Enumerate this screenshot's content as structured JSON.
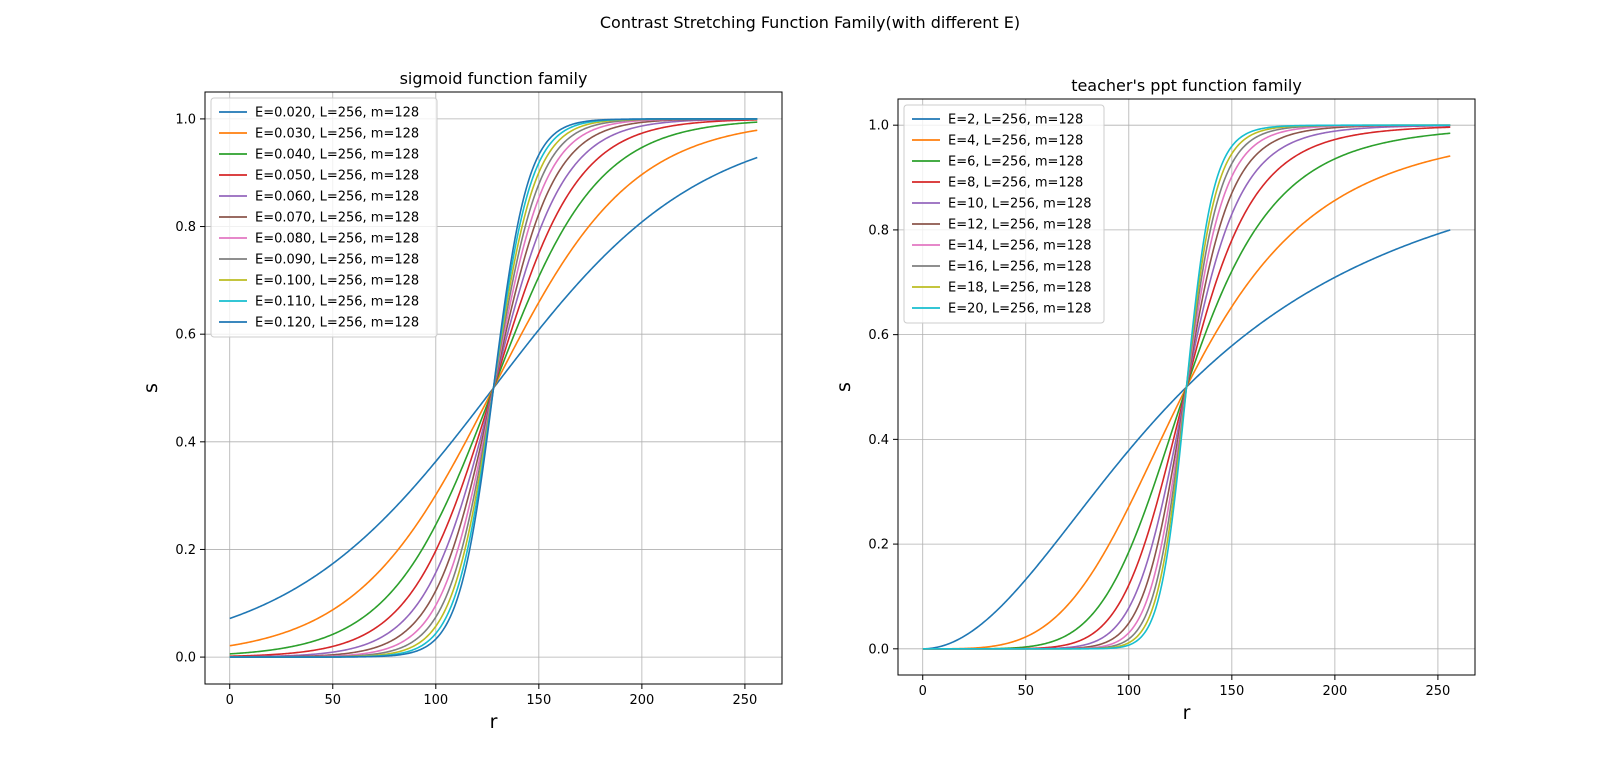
{
  "figure": {
    "suptitle": "Contrast Stretching Function Family(with different E)"
  },
  "colors": [
    "#1f77b4",
    "#ff7f0e",
    "#2ca02c",
    "#d62728",
    "#9467bd",
    "#8c564b",
    "#e377c2",
    "#7f7f7f",
    "#bcbd22",
    "#17becf"
  ],
  "chart_data": [
    {
      "type": "line",
      "function": "sigmoid",
      "title": "sigmoid function family",
      "xlabel": "r",
      "ylabel": "s",
      "L": 256,
      "m": 128,
      "xlim": [
        -12,
        268
      ],
      "ylim": [
        -0.05,
        1.05
      ],
      "xticks": [
        0,
        50,
        100,
        150,
        200,
        250
      ],
      "yticks": [
        0.0,
        0.2,
        0.4,
        0.6,
        0.8,
        1.0
      ],
      "xtick_labels": [
        "0",
        "50",
        "100",
        "150",
        "200",
        "250"
      ],
      "ytick_labels": [
        "0.0",
        "0.2",
        "0.4",
        "0.6",
        "0.8",
        "1.0"
      ],
      "grid": true,
      "legend_position": "upper-left",
      "series": [
        {
          "name": "E=0.020, L=256, m=128",
          "E": 0.02
        },
        {
          "name": "E=0.030, L=256, m=128",
          "E": 0.03
        },
        {
          "name": "E=0.040, L=256, m=128",
          "E": 0.04
        },
        {
          "name": "E=0.050, L=256, m=128",
          "E": 0.05
        },
        {
          "name": "E=0.060, L=256, m=128",
          "E": 0.06
        },
        {
          "name": "E=0.070, L=256, m=128",
          "E": 0.07
        },
        {
          "name": "E=0.080, L=256, m=128",
          "E": 0.08
        },
        {
          "name": "E=0.090, L=256, m=128",
          "E": 0.09
        },
        {
          "name": "E=0.100, L=256, m=128",
          "E": 0.1
        },
        {
          "name": "E=0.110, L=256, m=128",
          "E": 0.11
        },
        {
          "name": "E=0.120, L=256, m=128",
          "E": 0.12
        }
      ]
    },
    {
      "type": "line",
      "function": "power",
      "title": "teacher's ppt function family",
      "xlabel": "r",
      "ylabel": "s",
      "L": 256,
      "m": 128,
      "xlim": [
        -12,
        268
      ],
      "ylim": [
        -0.05,
        1.05
      ],
      "xticks": [
        0,
        50,
        100,
        150,
        200,
        250
      ],
      "yticks": [
        0.0,
        0.2,
        0.4,
        0.6,
        0.8,
        1.0
      ],
      "xtick_labels": [
        "0",
        "50",
        "100",
        "150",
        "200",
        "250"
      ],
      "ytick_labels": [
        "0.0",
        "0.2",
        "0.4",
        "0.6",
        "0.8",
        "1.0"
      ],
      "grid": true,
      "legend_position": "upper-left",
      "series": [
        {
          "name": "E=2, L=256, m=128",
          "E": 2
        },
        {
          "name": "E=4, L=256, m=128",
          "E": 4
        },
        {
          "name": "E=6, L=256, m=128",
          "E": 6
        },
        {
          "name": "E=8, L=256, m=128",
          "E": 8
        },
        {
          "name": "E=10, L=256, m=128",
          "E": 10
        },
        {
          "name": "E=12, L=256, m=128",
          "E": 12
        },
        {
          "name": "E=14, L=256, m=128",
          "E": 14
        },
        {
          "name": "E=16, L=256, m=128",
          "E": 16
        },
        {
          "name": "E=18, L=256, m=128",
          "E": 18
        },
        {
          "name": "E=20, L=256, m=128",
          "E": 20
        }
      ]
    }
  ]
}
